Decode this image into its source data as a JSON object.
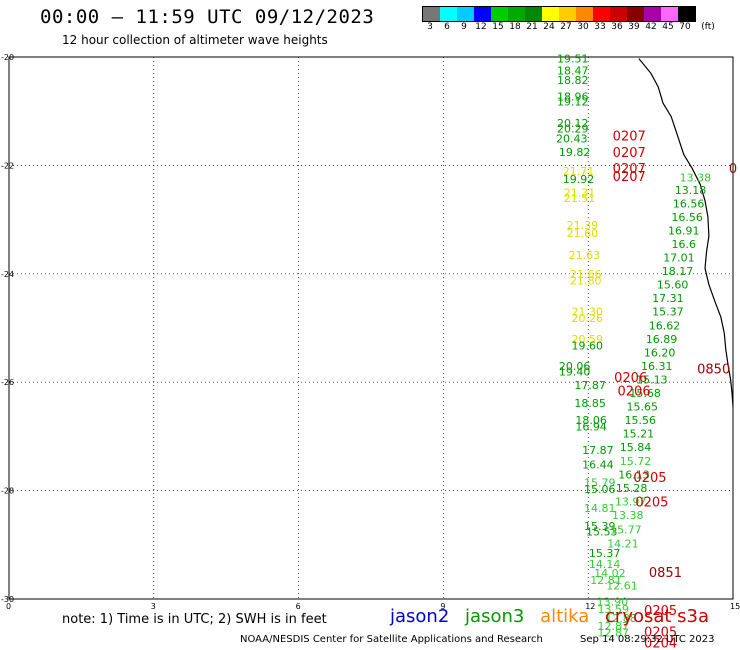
{
  "header": {
    "title": "00:00 — 11:59 UTC 09/12/2023",
    "subtitle": "12 hour collection of altimeter wave heights"
  },
  "colorbar": {
    "colors": [
      "#777777",
      "#00ffff",
      "#00ccff",
      "#0000ff",
      "#00cc00",
      "#00aa00",
      "#008800",
      "#ffff00",
      "#ffcc00",
      "#ff8800",
      "#ff0000",
      "#cc0000",
      "#880000",
      "#aa00aa",
      "#ff66ff",
      "#000000"
    ],
    "labels": [
      "3",
      "6",
      "9",
      "12",
      "15",
      "18",
      "21",
      "24",
      "27",
      "30",
      "33",
      "36",
      "39",
      "42",
      "45",
      "70"
    ],
    "unit": "(ft)"
  },
  "axes": {
    "lat_labels": [
      "-20",
      "-22",
      "-24",
      "-26",
      "-28",
      "-30"
    ],
    "lon_labels": [
      "0",
      "3",
      "6",
      "9",
      "12",
      "15"
    ]
  },
  "note": "note: 1) Time is in UTC; 2) SWH is in feet",
  "legend": [
    {
      "name": "jason2",
      "color": "#0000cc"
    },
    {
      "name": "jason3",
      "color": "#009900"
    },
    {
      "name": "altika",
      "color": "#ff8800"
    },
    {
      "name": "cryosat s3a",
      "color": "#cc0000"
    }
  ],
  "footer": {
    "credit": "NOAA/NESDIS Center for Satellite Applications and Research",
    "timestamp": "Sep 14 08:29:32 UTC 2023"
  },
  "chart_data": {
    "type": "scatter",
    "xlim": [
      0,
      15
    ],
    "ylim": [
      -30,
      -20
    ],
    "points": [
      {
        "lon": 11.68,
        "lat": -20.03,
        "v": "19.51",
        "c": "#009900"
      },
      {
        "lon": 11.68,
        "lat": -20.25,
        "v": "18.47",
        "c": "#009900"
      },
      {
        "lon": 11.68,
        "lat": -20.42,
        "v": "18.82",
        "c": "#009900"
      },
      {
        "lon": 11.68,
        "lat": -20.73,
        "v": "18.96",
        "c": "#009900"
      },
      {
        "lon": 11.68,
        "lat": -20.82,
        "v": "19.12",
        "c": "#009900"
      },
      {
        "lon": 11.68,
        "lat": -21.22,
        "v": "20.12",
        "c": "#009900"
      },
      {
        "lon": 11.68,
        "lat": -21.32,
        "v": "20.29",
        "c": "#009900"
      },
      {
        "lon": 11.66,
        "lat": -21.5,
        "v": "20.43",
        "c": "#009900"
      },
      {
        "lon": 11.72,
        "lat": -21.75,
        "v": "19.82",
        "c": "#009900"
      },
      {
        "lon": 11.8,
        "lat": -22.1,
        "v": "21.71",
        "c": "#dddd00"
      },
      {
        "lon": 11.8,
        "lat": -22.25,
        "v": "19.92",
        "c": "#009900"
      },
      {
        "lon": 11.82,
        "lat": -22.5,
        "v": "21.31",
        "c": "#dddd00"
      },
      {
        "lon": 11.82,
        "lat": -22.6,
        "v": "21.51",
        "c": "#dddd00"
      },
      {
        "lon": 11.88,
        "lat": -23.1,
        "v": "21.39",
        "c": "#dddd00"
      },
      {
        "lon": 11.88,
        "lat": -23.25,
        "v": "21.60",
        "c": "#dddd00"
      },
      {
        "lon": 11.92,
        "lat": -23.65,
        "v": "21.63",
        "c": "#dddd00"
      },
      {
        "lon": 11.95,
        "lat": -24.0,
        "v": "21.66",
        "c": "#dddd00"
      },
      {
        "lon": 11.95,
        "lat": -24.12,
        "v": "21.80",
        "c": "#dddd00"
      },
      {
        "lon": 11.98,
        "lat": -24.7,
        "v": "21.30",
        "c": "#dddd00"
      },
      {
        "lon": 11.98,
        "lat": -24.82,
        "v": "20.26",
        "c": "#dddd00"
      },
      {
        "lon": 11.98,
        "lat": -25.2,
        "v": "20.59",
        "c": "#dddd00"
      },
      {
        "lon": 11.98,
        "lat": -25.32,
        "v": "19.60",
        "c": "#009900"
      },
      {
        "lon": 11.72,
        "lat": -25.7,
        "v": "20.06",
        "c": "#009900"
      },
      {
        "lon": 11.72,
        "lat": -25.8,
        "v": "19.40",
        "c": "#009900"
      },
      {
        "lon": 12.04,
        "lat": -26.05,
        "v": "17.87",
        "c": "#009900"
      },
      {
        "lon": 12.04,
        "lat": -26.38,
        "v": "18.85",
        "c": "#009900"
      },
      {
        "lon": 12.06,
        "lat": -26.7,
        "v": "18.06",
        "c": "#009900"
      },
      {
        "lon": 12.06,
        "lat": -26.82,
        "v": "16.94",
        "c": "#009900"
      },
      {
        "lon": 12.2,
        "lat": -27.25,
        "v": "17.87",
        "c": "#009900"
      },
      {
        "lon": 12.2,
        "lat": -27.52,
        "v": "16.44",
        "c": "#009900"
      },
      {
        "lon": 12.24,
        "lat": -27.85,
        "v": "15.79",
        "c": "#33cc33"
      },
      {
        "lon": 12.24,
        "lat": -27.97,
        "v": "15.06",
        "c": "#009900"
      },
      {
        "lon": 12.24,
        "lat": -28.32,
        "v": "14.81",
        "c": "#33cc33"
      },
      {
        "lon": 12.24,
        "lat": -28.65,
        "v": "15.39",
        "c": "#009900"
      },
      {
        "lon": 12.28,
        "lat": -28.75,
        "v": "15.53",
        "c": "#009900"
      },
      {
        "lon": 12.34,
        "lat": -29.15,
        "v": "15.37",
        "c": "#009900"
      },
      {
        "lon": 12.34,
        "lat": -29.35,
        "v": "14.14",
        "c": "#33cc33"
      },
      {
        "lon": 12.37,
        "lat": -29.65,
        "v": "12.81",
        "c": "#33cc33"
      },
      {
        "lon": 12.45,
        "lat": -29.52,
        "v": "14.02",
        "c": "#33cc33"
      },
      {
        "lon": 12.5,
        "lat": -30.05,
        "v": "13.90",
        "c": "#33cc33"
      },
      {
        "lon": 12.52,
        "lat": -30.18,
        "v": "13.59",
        "c": "#33cc33"
      },
      {
        "lon": 12.52,
        "lat": -30.5,
        "v": "12.87",
        "c": "#33cc33"
      },
      {
        "lon": 12.52,
        "lat": -30.62,
        "v": "12.87",
        "c": "#33cc33"
      },
      {
        "lon": 14.22,
        "lat": -22.22,
        "v": "13.38",
        "c": "#33cc33"
      },
      {
        "lon": 14.12,
        "lat": -22.45,
        "v": "13.18",
        "c": "#009900"
      },
      {
        "lon": 14.08,
        "lat": -22.7,
        "v": "16.56",
        "c": "#009900"
      },
      {
        "lon": 14.05,
        "lat": -22.95,
        "v": "16.56",
        "c": "#009900"
      },
      {
        "lon": 13.98,
        "lat": -23.2,
        "v": "16.91",
        "c": "#009900"
      },
      {
        "lon": 13.98,
        "lat": -23.45,
        "v": "16.6",
        "c": "#009900"
      },
      {
        "lon": 13.88,
        "lat": -23.7,
        "v": "17.01",
        "c": "#009900"
      },
      {
        "lon": 13.85,
        "lat": -23.95,
        "v": "18.17",
        "c": "#009900"
      },
      {
        "lon": 13.75,
        "lat": -24.2,
        "v": "15.60",
        "c": "#009900"
      },
      {
        "lon": 13.65,
        "lat": -24.45,
        "v": "17.31",
        "c": "#009900"
      },
      {
        "lon": 13.65,
        "lat": -24.7,
        "v": "15.37",
        "c": "#009900"
      },
      {
        "lon": 13.58,
        "lat": -24.95,
        "v": "16.62",
        "c": "#009900"
      },
      {
        "lon": 13.52,
        "lat": -25.2,
        "v": "16.89",
        "c": "#009900"
      },
      {
        "lon": 13.48,
        "lat": -25.45,
        "v": "16.20",
        "c": "#009900"
      },
      {
        "lon": 13.42,
        "lat": -25.7,
        "v": "16.31",
        "c": "#009900"
      },
      {
        "lon": 13.32,
        "lat": -25.95,
        "v": "15.13",
        "c": "#009900"
      },
      {
        "lon": 13.18,
        "lat": -26.2,
        "v": "15.68",
        "c": "#009900"
      },
      {
        "lon": 13.12,
        "lat": -26.45,
        "v": "15.65",
        "c": "#009900"
      },
      {
        "lon": 13.08,
        "lat": -26.7,
        "v": "15.56",
        "c": "#009900"
      },
      {
        "lon": 13.04,
        "lat": -26.95,
        "v": "15.21",
        "c": "#009900"
      },
      {
        "lon": 12.98,
        "lat": -27.2,
        "v": "15.84",
        "c": "#009900"
      },
      {
        "lon": 12.98,
        "lat": -27.45,
        "v": "15.72",
        "c": "#33cc33"
      },
      {
        "lon": 12.95,
        "lat": -27.7,
        "v": "16.13",
        "c": "#009900"
      },
      {
        "lon": 12.9,
        "lat": -27.95,
        "v": "15.28",
        "c": "#009900"
      },
      {
        "lon": 12.88,
        "lat": -28.2,
        "v": "13.97",
        "c": "#33cc33"
      },
      {
        "lon": 12.82,
        "lat": -28.45,
        "v": "13.38",
        "c": "#33cc33"
      },
      {
        "lon": 12.78,
        "lat": -28.72,
        "v": "15.77",
        "c": "#33cc33"
      },
      {
        "lon": 12.72,
        "lat": -28.98,
        "v": "14.21",
        "c": "#33cc33"
      },
      {
        "lon": 12.7,
        "lat": -29.75,
        "v": "12.61",
        "c": "#33cc33"
      },
      {
        "lon": 12.68,
        "lat": -30.35,
        "v": "12.88",
        "c": "#33cc33"
      }
    ],
    "passes": [
      {
        "lon": 12.85,
        "lat": -21.45,
        "v": "0207",
        "c": "#cc0000"
      },
      {
        "lon": 12.85,
        "lat": -21.75,
        "v": "0207",
        "c": "#cc0000"
      },
      {
        "lon": 12.85,
        "lat": -22.05,
        "v": "0207",
        "c": "#cc0000"
      },
      {
        "lon": 12.85,
        "lat": -22.2,
        "v": "0207",
        "c": "#cc0000"
      },
      {
        "lon": 15.0,
        "lat": -22.05,
        "v": "0",
        "c": "#990000"
      },
      {
        "lon": 14.6,
        "lat": -25.75,
        "v": "0850",
        "c": "#990000"
      },
      {
        "lon": 12.88,
        "lat": -25.9,
        "v": "0206",
        "c": "#cc0000"
      },
      {
        "lon": 12.95,
        "lat": -26.15,
        "v": "0206",
        "c": "#cc0000"
      },
      {
        "lon": 13.28,
        "lat": -27.75,
        "v": "0205",
        "c": "#cc0000"
      },
      {
        "lon": 13.32,
        "lat": -28.2,
        "v": "0205",
        "c": "#cc0000"
      },
      {
        "lon": 13.6,
        "lat": -29.5,
        "v": "0851",
        "c": "#990000"
      },
      {
        "lon": 13.5,
        "lat": -30.2,
        "v": "0205",
        "c": "#cc0000"
      },
      {
        "lon": 13.5,
        "lat": -30.6,
        "v": "0205",
        "c": "#cc0000"
      },
      {
        "lon": 13.5,
        "lat": -30.8,
        "v": "0204",
        "c": "#cc0000"
      }
    ],
    "coast": [
      [
        13.05,
        -20.03
      ],
      [
        13.3,
        -20.3
      ],
      [
        13.45,
        -20.55
      ],
      [
        13.55,
        -20.85
      ],
      [
        13.72,
        -21.1
      ],
      [
        13.85,
        -21.45
      ],
      [
        13.98,
        -21.8
      ],
      [
        14.15,
        -22.05
      ],
      [
        14.32,
        -22.35
      ],
      [
        14.42,
        -22.65
      ],
      [
        14.48,
        -22.95
      ],
      [
        14.5,
        -23.3
      ],
      [
        14.45,
        -23.6
      ],
      [
        14.42,
        -23.9
      ],
      [
        14.5,
        -24.2
      ],
      [
        14.62,
        -24.5
      ],
      [
        14.75,
        -24.8
      ],
      [
        14.82,
        -25.1
      ],
      [
        14.85,
        -25.4
      ],
      [
        14.9,
        -25.7
      ],
      [
        14.95,
        -25.95
      ],
      [
        14.98,
        -26.2
      ],
      [
        15.0,
        -26.45
      ]
    ]
  }
}
